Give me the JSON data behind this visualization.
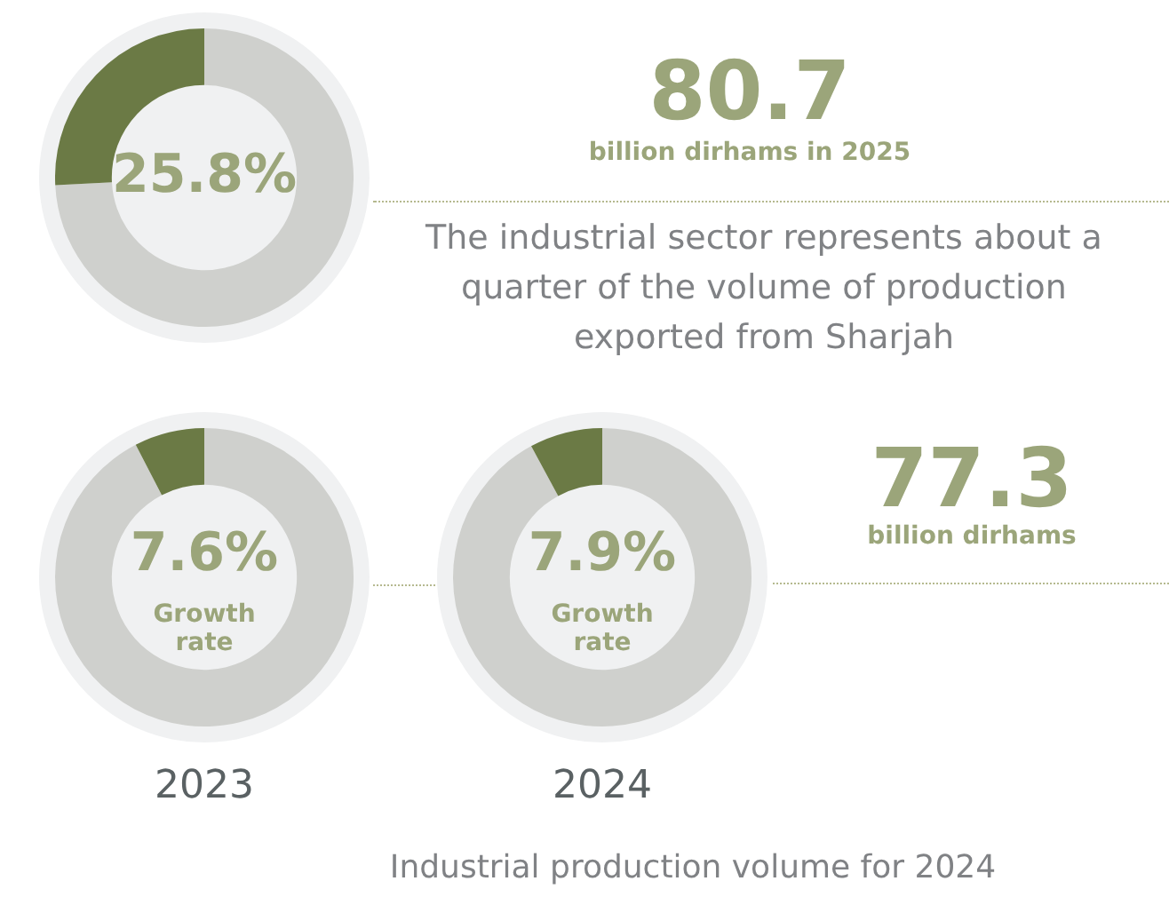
{
  "chart_data": [
    {
      "type": "donut",
      "categories": [
        null,
        null
      ],
      "values": [
        74.2,
        25.8
      ],
      "colors": [
        "#cfd0cd",
        "#6b7a45"
      ],
      "value_labels": [
        null,
        "25.8%"
      ]
    },
    {
      "type": "donut",
      "title": "2023",
      "categories": [
        null,
        null
      ],
      "values": [
        92.4,
        7.6
      ],
      "colors": [
        "#cfd0cd",
        "#6b7a45"
      ],
      "value_labels": [
        null,
        "7.6%"
      ],
      "annotations": [
        "Growth rate"
      ]
    },
    {
      "type": "donut",
      "title": "2024",
      "categories": [
        null,
        null
      ],
      "values": [
        92.1,
        7.9
      ],
      "colors": [
        "#cfd0cd",
        "#6b7a45"
      ],
      "value_labels": [
        null,
        "7.9%"
      ],
      "annotations": [
        "Growth rate"
      ]
    },
    {
      "type": "other",
      "annotations": [
        "80.7",
        "billion dirhams in 2025",
        "The industrial sector represents about a quarter of the volume of production exported from Sharjah",
        "77.3",
        "billion dirhams",
        "Industrial production volume for 2024"
      ]
    }
  ]
}
